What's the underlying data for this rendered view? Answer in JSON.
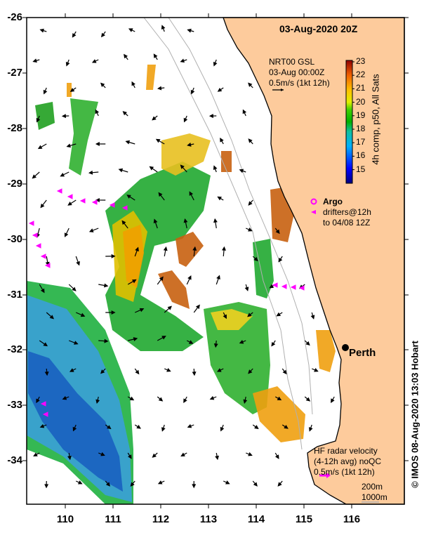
{
  "title": "03-Aug-2020 20Z",
  "model_legend": {
    "lines": [
      "NRT00 GSL",
      "03-Aug 00:00Z",
      "0.5m/s (1kt 12h)"
    ]
  },
  "colorbar": {
    "label": "4h comp, p50, All Sats",
    "ticks": [
      "23",
      "22",
      "21",
      "20",
      "19",
      "18",
      "17",
      "16",
      "15"
    ],
    "range": [
      14.5,
      23.1
    ]
  },
  "argo_legend": {
    "title": "Argo",
    "lines": [
      "drifters@12h",
      "to 04/08 12Z"
    ],
    "color": "#ff00ff"
  },
  "hf_radar_legend": {
    "lines": [
      "HF radar velocity",
      "(4-12h avg) noQC",
      "0.5m/s (1kt 12h)"
    ]
  },
  "bathy_legend": {
    "lines": [
      "200m",
      "1000m"
    ]
  },
  "place": {
    "name": "Perth"
  },
  "credit": "© IMOS 08-Aug-2020 13:03 Hobart",
  "axes": {
    "lat_ticks": [
      "-26",
      "-27",
      "-28",
      "-29",
      "-30",
      "-31",
      "-32",
      "-33",
      "-34"
    ],
    "lon_ticks": [
      "110",
      "111",
      "112",
      "113",
      "114",
      "115",
      "116"
    ]
  },
  "colors": {
    "land": "#fdcb9c",
    "drifter": "#ff00ff",
    "bathy": "#b0b0b0"
  }
}
